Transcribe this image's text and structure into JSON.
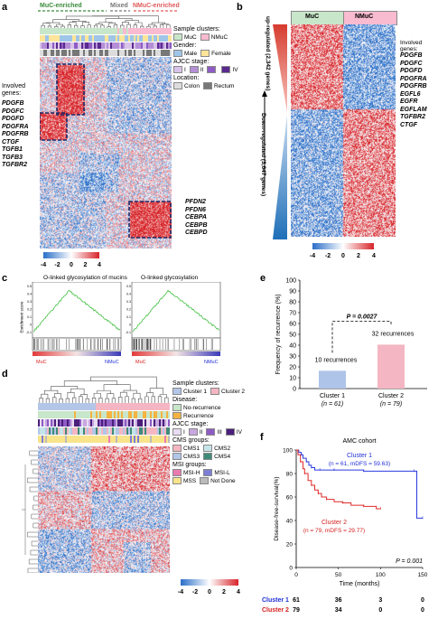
{
  "panels": {
    "a": {
      "label": "a",
      "groups": [
        "MuC-enriched",
        "Mixed",
        "NMuC-enriched"
      ],
      "involved_title": "Involved genes:",
      "genes_top": [
        "PDGFB",
        "PDGFC",
        "PDGFD",
        "PDGFRA",
        "PDGFRB",
        "CTGF",
        "TGFB1",
        "TGFB3",
        "TGFBR2"
      ],
      "genes_bottom": [
        "PFDN2",
        "PFDN6",
        "CEBPA",
        "CEBPB",
        "CEBPD"
      ],
      "legend": {
        "sample_clusters_title": "Sample clusters:",
        "sample_clusters": [
          {
            "label": "MuC",
            "color": "#c8e6c9"
          },
          {
            "label": "NMuC",
            "color": "#f8bbd0"
          }
        ],
        "gender_title": "Gender:",
        "gender": [
          {
            "label": "Male",
            "color": "#9fc5e8"
          },
          {
            "label": "Female",
            "color": "#ffe599"
          }
        ],
        "ajcc_title": "AJCC stage:",
        "ajcc": [
          {
            "label": "I",
            "color": "#d9c3e9"
          },
          {
            "label": "II",
            "color": "#b48fd6"
          },
          {
            "label": "",
            "color": "#8e5cc4"
          },
          {
            "label": "IV",
            "color": "#5b2a8e"
          }
        ],
        "location_title": "Location:",
        "location": [
          {
            "label": "Colon",
            "color": "#dddddd"
          },
          {
            "label": "Rectum",
            "color": "#777777"
          }
        ]
      },
      "scale_ticks": [
        "-4",
        "-2",
        "0",
        "2",
        "4"
      ]
    },
    "b": {
      "label": "b",
      "groups": [
        "MuC",
        "NMuC"
      ],
      "up_label": "up-regulated (2,342 genes)",
      "down_label": "Down-regulated (3,647 genes)",
      "involved_title": "Involved genes:",
      "genes": [
        "PDGFB",
        "PDGFC",
        "PDGFD",
        "PDGFRA",
        "PDGFRB",
        "EGFL6",
        "EGFR",
        "EGFLAM",
        "TGFBR2",
        "CTGF"
      ],
      "scale_ticks": [
        "-4",
        "-2",
        "0",
        "2",
        "4"
      ]
    },
    "c": {
      "label": "c",
      "plots": [
        {
          "title": "O-linked glycosylation of mucins",
          "ylabel": "Enrichment score",
          "left": "MuC",
          "right": "NMuC"
        },
        {
          "title": "O-linked glycosylation",
          "ylabel": "",
          "left": "MuC",
          "right": "NMuC"
        }
      ]
    },
    "d": {
      "label": "d",
      "legend": {
        "sample_clusters_title": "Sample clusters:",
        "sample_clusters": [
          {
            "label": "Cluster 1",
            "color": "#b3c6e7"
          },
          {
            "label": "Cluster 2",
            "color": "#f4b6c2"
          }
        ],
        "disease_title": "Disease:",
        "disease": [
          {
            "label": "No-recurrence",
            "color": "#c8e6c9"
          },
          {
            "label": "Recurrence",
            "color": "#f5b342"
          }
        ],
        "ajcc_title": "AJCC stage:",
        "ajcc": [
          {
            "label": "I",
            "color": "#e8dcf2"
          },
          {
            "label": "II",
            "color": "#c8a8e0"
          },
          {
            "label": "III",
            "color": "#8e5cc4"
          },
          {
            "label": "IV",
            "color": "#4a1f7a"
          }
        ],
        "cms_title": "CMS groups:",
        "cms": [
          {
            "label": "CMS1",
            "color": "#f4b6c2"
          },
          {
            "label": "CMS2",
            "color": "#c5e4e8"
          },
          {
            "label": "CMS3",
            "color": "#b3c6e7"
          },
          {
            "label": "CMS4",
            "color": "#3f8b7a"
          }
        ],
        "msi_title": "MSI groups:",
        "msi": [
          {
            "label": "MSI-H",
            "color": "#e97bb0"
          },
          {
            "label": "MSI-L",
            "color": "#7d7fd6"
          },
          {
            "label": "MSS",
            "color": "#f9e48b"
          },
          {
            "label": "Not Done",
            "color": "#bbbbbb"
          }
        ]
      },
      "scale_ticks": [
        "-4",
        "-2",
        "0",
        "2",
        "4"
      ]
    },
    "e": {
      "label": "e",
      "p_label": "P = 0.0027",
      "annot1": "10 recurrences",
      "annot2": "32 recurrences",
      "chart_data": {
        "type": "bar",
        "categories": [
          "Cluster 1",
          "Cluster 2"
        ],
        "category_n": [
          "(n = 61)",
          "(n = 79)"
        ],
        "values": [
          16.4,
          40.5
        ],
        "colors": [
          "#aec4e8",
          "#f4b6c2"
        ],
        "ylabel": "Frequency of recurrence (%)",
        "ylim": [
          0,
          100
        ],
        "yticks": [
          0,
          10,
          20,
          30,
          40,
          50,
          60,
          70,
          80,
          90,
          100
        ]
      }
    },
    "f": {
      "label": "f",
      "title": "AMC cohort",
      "p_label": "P = 0.001",
      "c1_label": "Cluster 1",
      "c1_sub": "(n = 61, mDFS = 59.63)",
      "c2_label": "Cluster 2",
      "c2_sub": "(n = 79, mDFS = 29.77)",
      "risk": [
        {
          "label": "Cluster 1",
          "color": "#1f2fd6",
          "values": [
            "61",
            "36",
            "3",
            "0"
          ]
        },
        {
          "label": "Cluster 2",
          "color": "#d62020",
          "values": [
            "79",
            "34",
            "0",
            "0"
          ]
        }
      ],
      "chart_data": {
        "type": "line",
        "xlabel": "Time (months)",
        "ylabel": "Disease-free-survival(%)",
        "xlim": [
          0,
          150
        ],
        "ylim": [
          0,
          100
        ],
        "xticks": [
          0,
          50,
          100,
          150
        ],
        "yticks": [
          0,
          20,
          40,
          60,
          80,
          100
        ],
        "series": [
          {
            "name": "Cluster 1",
            "color": "#2a3ae0",
            "x": [
              0,
              3,
              6,
              8,
              12,
              15,
              18,
              22,
              28,
              35,
              45,
              60,
              80,
              100,
              140,
              143,
              150
            ],
            "y": [
              100,
              98,
              96,
              93,
              90,
              87,
              85,
              83,
              83,
              83,
              83,
              83,
              82,
              82,
              82,
              42,
              42
            ]
          },
          {
            "name": "Cluster 2",
            "color": "#e02a2a",
            "x": [
              0,
              2,
              5,
              8,
              10,
              14,
              18,
              22,
              26,
              30,
              36,
              45,
              55,
              65,
              80,
              95,
              100
            ],
            "y": [
              100,
              96,
              90,
              84,
              80,
              74,
              70,
              66,
              63,
              60,
              58,
              56,
              55,
              53,
              52,
              50,
              50
            ]
          }
        ]
      }
    }
  }
}
